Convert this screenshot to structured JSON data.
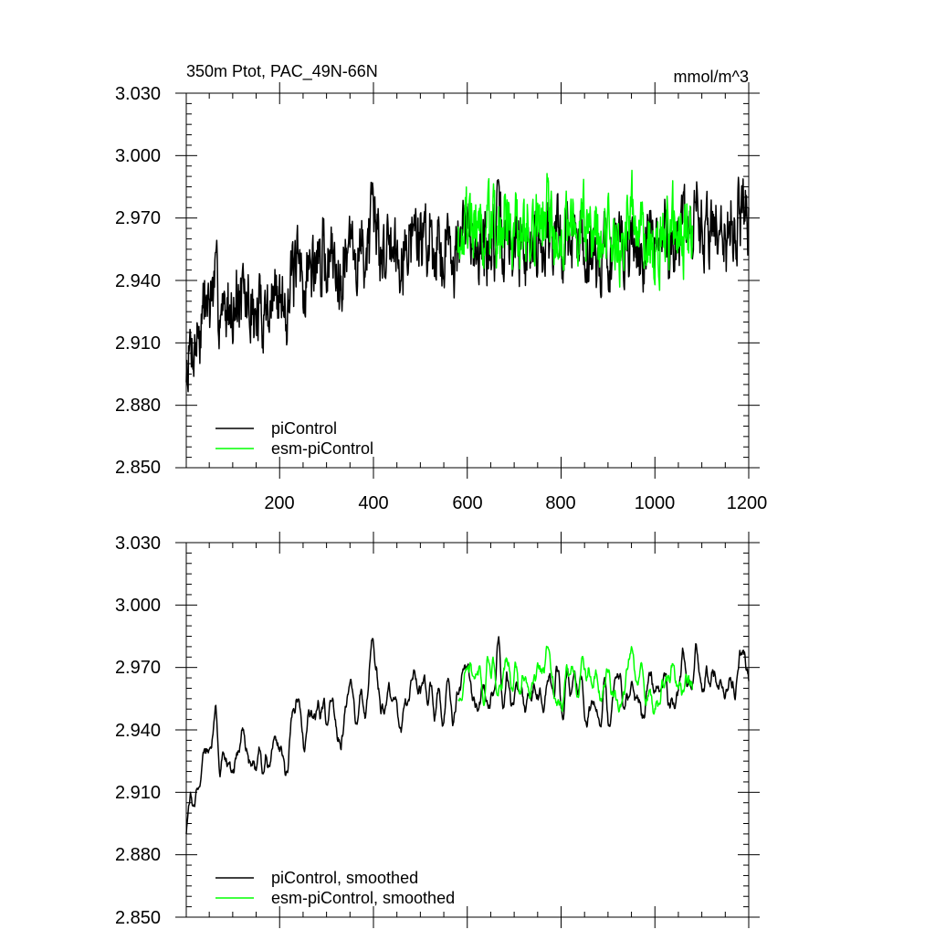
{
  "chart_data": [
    {
      "type": "line",
      "title": "350m Ptot, PAC_49N-66N",
      "units": "mmol/m^3",
      "xlim": [
        1,
        1200
      ],
      "ylim": [
        2.85,
        3.03
      ],
      "y_ticks": [
        "2.850",
        "2.880",
        "2.910",
        "2.940",
        "2.970",
        "3.000",
        "3.030"
      ],
      "x_ticks": [
        "200",
        "400",
        "600",
        "800",
        "1000",
        "1200"
      ],
      "grid": false,
      "legend_position": "bottom-left",
      "series": [
        {
          "name": "piControl",
          "color": "#000000",
          "x_start": 1,
          "x_end": 1200,
          "trend": {
            "x": [
              1,
              50,
              150,
              300,
              420,
              500,
              600,
              700,
              800,
              900,
              1000,
              1100,
              1200
            ],
            "y": [
              2.895,
              2.932,
              2.925,
              2.952,
              2.958,
              2.962,
              2.958,
              2.96,
              2.962,
              2.954,
              2.958,
              2.966,
              2.972
            ]
          },
          "noise_amplitude": 0.018,
          "seed": 7
        },
        {
          "name": "esm-piControl",
          "color": "#00ff00",
          "x_start": 580,
          "x_end": 1080,
          "trend": {
            "x": [
              580,
              700,
              800,
              900,
              1000,
              1080
            ],
            "y": [
              2.965,
              2.966,
              2.97,
              2.962,
              2.96,
              2.962
            ]
          },
          "noise_amplitude": 0.018,
          "seed": 19
        }
      ]
    },
    {
      "type": "line",
      "xlim": [
        1,
        1200
      ],
      "ylim": [
        2.85,
        3.03
      ],
      "y_ticks": [
        "2.850",
        "2.880",
        "2.910",
        "2.940",
        "2.970",
        "3.000",
        "3.030"
      ],
      "grid": false,
      "legend_position": "bottom-left",
      "series": [
        {
          "name": "piControl, smoothed",
          "color": "#000000",
          "x_start": 1,
          "x_end": 1200,
          "trend": {
            "x": [
              1,
              50,
              150,
              300,
              420,
              500,
              600,
              700,
              800,
              900,
              1000,
              1100,
              1200
            ],
            "y": [
              2.895,
              2.932,
              2.925,
              2.952,
              2.958,
              2.962,
              2.958,
              2.96,
              2.962,
              2.954,
              2.958,
              2.966,
              2.972
            ]
          },
          "noise_amplitude": 0.013,
          "seed": 7
        },
        {
          "name": "esm-piControl, smoothed",
          "color": "#00ff00",
          "x_start": 580,
          "x_end": 1080,
          "trend": {
            "x": [
              580,
              700,
              800,
              900,
              1000,
              1080
            ],
            "y": [
              2.965,
              2.966,
              2.97,
              2.962,
              2.96,
              2.962
            ]
          },
          "noise_amplitude": 0.013,
          "seed": 19
        }
      ]
    }
  ]
}
